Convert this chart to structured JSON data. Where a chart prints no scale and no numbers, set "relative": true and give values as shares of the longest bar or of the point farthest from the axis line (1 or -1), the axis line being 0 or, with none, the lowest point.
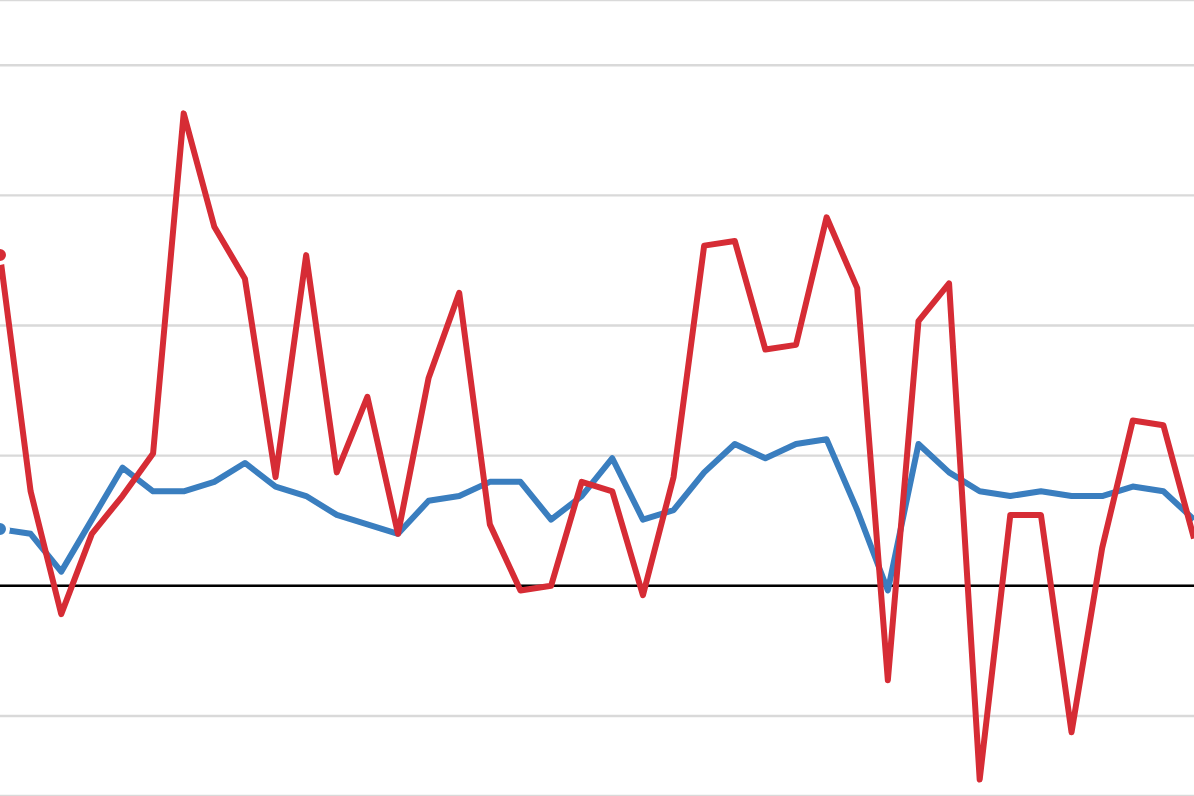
{
  "chart_data": {
    "type": "line",
    "relative": true,
    "grid": "y",
    "legend": false,
    "marker": "none",
    "line_style": "solid",
    "categories": [
      null,
      null,
      null,
      null,
      null,
      null,
      null,
      null,
      null,
      null,
      null,
      null,
      null,
      null,
      null,
      null,
      null,
      null,
      null,
      null,
      null,
      null,
      null,
      null,
      null,
      null,
      null,
      null,
      null,
      null,
      null,
      null,
      null,
      null,
      null,
      null,
      null,
      null,
      null,
      null
    ],
    "series": [
      {
        "color": "#3a7ebf",
        "values": [
          0.12,
          0.11,
          0.03,
          0.14,
          0.25,
          0.2,
          0.2,
          0.22,
          0.26,
          0.21,
          0.19,
          0.15,
          0.13,
          0.11,
          0.18,
          0.19,
          0.22,
          0.22,
          0.14,
          0.19,
          0.27,
          0.14,
          0.16,
          0.24,
          0.3,
          0.27,
          0.3,
          0.31,
          0.16,
          -0.01,
          0.3,
          0.24,
          0.2,
          0.19,
          0.2,
          0.19,
          0.19,
          0.21,
          0.2,
          0.14
        ]
      },
      {
        "color": "#d62c35",
        "values": [
          0.7,
          0.2,
          -0.06,
          0.11,
          0.19,
          0.28,
          1,
          0.76,
          0.65,
          0.23,
          0.7,
          0.24,
          0.4,
          0.11,
          0.44,
          0.62,
          0.13,
          -0.01,
          0.0,
          0.22,
          0.2,
          -0.02,
          0.23,
          0.72,
          0.73,
          0.5,
          0.51,
          0.78,
          0.63,
          -0.2,
          0.56,
          0.64,
          -0.41,
          0.15,
          0.15,
          -0.31,
          0.08,
          0.35,
          0.34,
          0.1
        ]
      }
    ]
  }
}
